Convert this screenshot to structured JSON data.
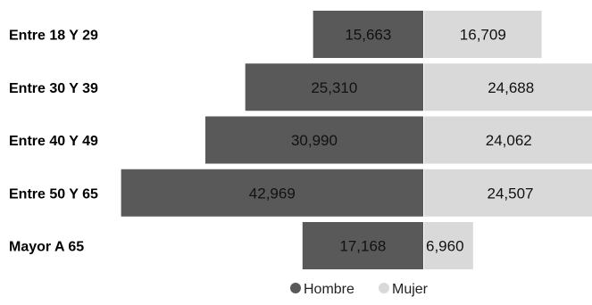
{
  "chart_data": {
    "type": "bar",
    "orientation": "horizontal-diverging",
    "categories": [
      "Entre 18 Y 29",
      "Entre 30 Y 39",
      "Entre 40 Y 49",
      "Entre 50 Y 65",
      "Mayor A 65"
    ],
    "series": [
      {
        "name": "Hombre",
        "values": [
          15663,
          25310,
          30990,
          42969,
          17168
        ],
        "value_labels": [
          "15,663",
          "25,310",
          "30,990",
          "42,969",
          "17,168"
        ],
        "direction": "left",
        "color": "#595959"
      },
      {
        "name": "Mujer",
        "values": [
          16709,
          24688,
          24062,
          24507,
          6960
        ],
        "value_labels": [
          "16,709",
          "24,688",
          "24,062",
          "24,507",
          "6,960"
        ],
        "direction": "right",
        "color": "#d9d9d9"
      }
    ],
    "legend_position": "bottom",
    "grid": false
  }
}
